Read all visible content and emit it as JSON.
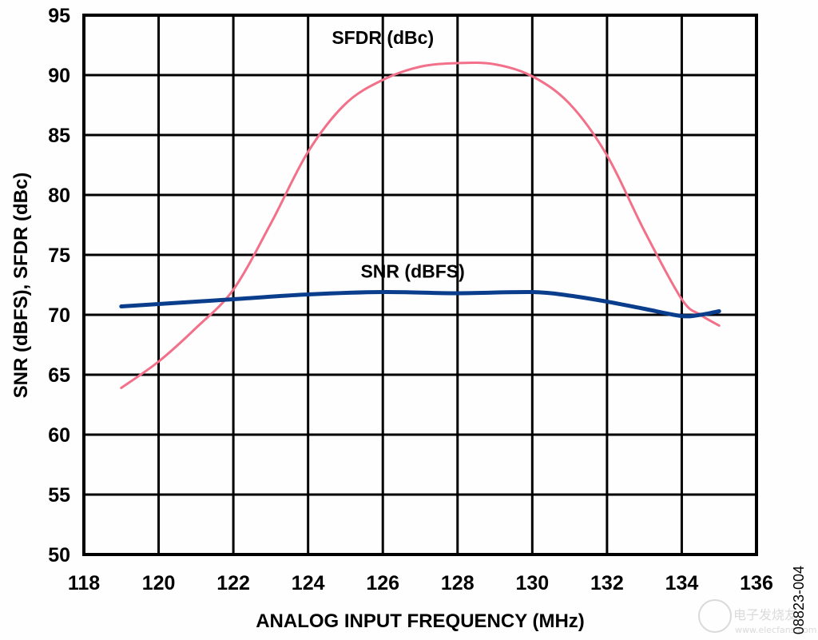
{
  "chart_data": {
    "type": "line",
    "title": "",
    "xlabel": "ANALOG INPUT FREQUENCY (MHz)",
    "ylabel": "SNR (dBFS), SFDR (dBc)",
    "xlim": [
      118,
      136
    ],
    "ylim": [
      50,
      95
    ],
    "xticks": [
      118,
      120,
      122,
      124,
      126,
      128,
      130,
      132,
      134,
      136
    ],
    "yticks": [
      50,
      55,
      60,
      65,
      70,
      75,
      80,
      85,
      90,
      95
    ],
    "grid": true,
    "series": [
      {
        "name": "SFDR (dBc)",
        "color": "#f2708a",
        "x": [
          119,
          120,
          121,
          122,
          123,
          124,
          125,
          126,
          127,
          128,
          129,
          130,
          131,
          132,
          133,
          134,
          134.5,
          135
        ],
        "y": [
          63.9,
          66.1,
          68.9,
          72.1,
          77.6,
          83.6,
          87.6,
          89.6,
          90.7,
          91.0,
          90.9,
          89.9,
          87.6,
          83.3,
          77.0,
          71.3,
          70.0,
          69.1
        ],
        "label_pos": [
          126.0,
          92.6
        ]
      },
      {
        "name": "SNR (dBFS)",
        "color": "#0a3d8c",
        "x": [
          119,
          122,
          124,
          126,
          128,
          130,
          131,
          132,
          133,
          134,
          134.5,
          135
        ],
        "y": [
          70.7,
          71.3,
          71.7,
          71.9,
          71.8,
          71.9,
          71.6,
          71.1,
          70.5,
          69.9,
          70.0,
          70.3
        ],
        "label_pos": [
          126.8,
          73.1
        ]
      }
    ],
    "figure_code": "08823-004",
    "watermark": "电子发烧友 www.elecfans.com"
  }
}
